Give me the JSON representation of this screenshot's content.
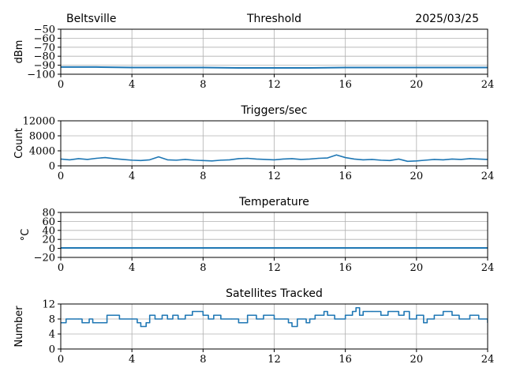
{
  "header": {
    "station": "Beltsville",
    "date": "2025/03/25"
  },
  "colors": {
    "series": "#1f77b4",
    "grid": "#b0b0b0",
    "axis": "#000000"
  },
  "chart_data": [
    {
      "type": "line",
      "title": "Threshold",
      "xlabel": "",
      "ylabel": "dBm",
      "xlim": [
        0,
        24
      ],
      "ylim": [
        -100,
        -50
      ],
      "xticks": [
        "0",
        "4",
        "8",
        "12",
        "16",
        "20",
        "24"
      ],
      "yticks": [
        "−50",
        "−60",
        "−70",
        "−80",
        "−90",
        "−100"
      ],
      "grid": true,
      "series": [
        {
          "x": [
            0,
            2,
            4,
            6,
            8,
            10,
            12,
            14,
            16,
            18,
            20,
            22,
            24
          ],
          "values": [
            -92,
            -92,
            -92.5,
            -92.5,
            -92.5,
            -93,
            -93,
            -93,
            -92.5,
            -92.5,
            -92.5,
            -92.5,
            -92.5
          ]
        }
      ]
    },
    {
      "type": "line",
      "title": "Triggers/sec",
      "xlabel": "",
      "ylabel": "Count",
      "xlim": [
        0,
        24
      ],
      "ylim": [
        0,
        12000
      ],
      "xticks": [
        "0",
        "4",
        "8",
        "12",
        "16",
        "20",
        "24"
      ],
      "yticks": [
        "0",
        "4000",
        "8000",
        "12000"
      ],
      "grid": true,
      "series": [
        {
          "x": [
            0,
            0.5,
            1,
            1.5,
            2,
            2.5,
            3,
            3.5,
            4,
            4.5,
            5,
            5.5,
            6,
            6.5,
            7,
            7.5,
            8,
            8.5,
            9,
            9.5,
            10,
            10.5,
            11,
            11.5,
            12,
            12.5,
            13,
            13.5,
            14,
            14.5,
            15,
            15.5,
            16,
            16.5,
            17,
            17.5,
            18,
            18.5,
            19,
            19.5,
            20,
            20.5,
            21,
            21.5,
            22,
            22.5,
            23,
            23.5,
            24
          ],
          "values": [
            1800,
            1600,
            1900,
            1700,
            2000,
            2200,
            1900,
            1700,
            1500,
            1400,
            1600,
            2400,
            1600,
            1500,
            1700,
            1500,
            1400,
            1300,
            1500,
            1600,
            1900,
            2000,
            1800,
            1700,
            1600,
            1800,
            1900,
            1700,
            1800,
            2000,
            2100,
            2900,
            2200,
            1800,
            1600,
            1700,
            1500,
            1400,
            1800,
            1200,
            1300,
            1500,
            1700,
            1600,
            1800,
            1700,
            1900,
            1800,
            1700
          ]
        }
      ]
    },
    {
      "type": "line",
      "title": "Temperature",
      "xlabel": "",
      "ylabel": "°C",
      "xlim": [
        0,
        24
      ],
      "ylim": [
        -20,
        80
      ],
      "xticks": [
        "0",
        "4",
        "8",
        "12",
        "16",
        "20",
        "24"
      ],
      "yticks": [
        "−20",
        "0",
        "20",
        "40",
        "60",
        "80"
      ],
      "grid": true,
      "series": [
        {
          "x": [
            0,
            4,
            8,
            12,
            16,
            20,
            24
          ],
          "values": [
            1,
            1,
            1,
            1,
            1,
            1,
            1
          ]
        }
      ]
    },
    {
      "type": "line",
      "title": "Satellites Tracked",
      "xlabel": "",
      "ylabel": "Number",
      "xlim": [
        0,
        24
      ],
      "ylim": [
        0,
        12
      ],
      "xticks": [
        "0",
        "4",
        "8",
        "12",
        "16",
        "20",
        "24"
      ],
      "yticks": [
        "0",
        "4",
        "8",
        "12"
      ],
      "grid": true,
      "series": [
        {
          "x": [
            0,
            0.3,
            1,
            1.2,
            1.6,
            1.8,
            2.5,
            2.6,
            3,
            3.3,
            4,
            4.3,
            4.5,
            4.8,
            5,
            5.3,
            5.7,
            6,
            6.3,
            6.6,
            7,
            7.4,
            8,
            8.3,
            8.6,
            9,
            9.6,
            10,
            10.5,
            11,
            11.4,
            12,
            12.6,
            12.8,
            13,
            13.3,
            13.8,
            14,
            14.3,
            14.8,
            15,
            15.4,
            16,
            16.4,
            16.6,
            16.8,
            17,
            17.5,
            18,
            18.4,
            19,
            19.3,
            19.6,
            20,
            20.4,
            20.6,
            21,
            21.5,
            22,
            22.4,
            23,
            23.5,
            24
          ],
          "values": [
            7,
            8,
            8,
            7,
            8,
            7,
            7,
            9,
            9,
            8,
            8,
            7,
            6,
            7,
            9,
            8,
            9,
            8,
            9,
            8,
            9,
            10,
            9,
            8,
            9,
            8,
            8,
            7,
            9,
            8,
            9,
            8,
            8,
            7,
            6,
            8,
            7,
            8,
            9,
            10,
            9,
            8,
            9,
            10,
            11,
            9,
            10,
            10,
            9,
            10,
            9,
            10,
            8,
            9,
            7,
            8,
            9,
            10,
            9,
            8,
            9,
            8,
            7
          ]
        }
      ]
    }
  ]
}
